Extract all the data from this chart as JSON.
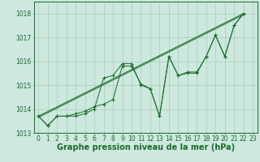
{
  "background_color": "#cce8df",
  "grid_color": "#aaccbb",
  "line_color": "#1a6b2a",
  "ylim": [
    1013.0,
    1018.5
  ],
  "xlim": [
    -0.5,
    23.5
  ],
  "yticks": [
    1013,
    1014,
    1015,
    1016,
    1017,
    1018
  ],
  "xticks": [
    0,
    1,
    2,
    3,
    4,
    5,
    6,
    7,
    8,
    9,
    10,
    11,
    12,
    13,
    14,
    15,
    16,
    17,
    18,
    19,
    20,
    21,
    22,
    23
  ],
  "line1_x": [
    0,
    1,
    2,
    3,
    4,
    5,
    6,
    7,
    8,
    9,
    10,
    11,
    12,
    13,
    14,
    15,
    16,
    17,
    18,
    19,
    20,
    21,
    22
  ],
  "line1_y": [
    1013.7,
    1013.3,
    1013.7,
    1013.7,
    1013.7,
    1013.8,
    1014.0,
    1015.3,
    1015.4,
    1015.9,
    1015.9,
    1015.0,
    1014.85,
    1013.7,
    1016.2,
    1015.4,
    1015.5,
    1015.5,
    1016.2,
    1017.1,
    1016.2,
    1017.5,
    1018.0
  ],
  "line2_x": [
    0,
    1,
    2,
    3,
    4,
    5,
    6,
    7,
    8,
    9,
    10,
    11,
    12,
    13,
    14,
    15,
    16,
    17,
    18,
    19,
    20,
    21,
    22
  ],
  "line2_y": [
    1013.7,
    1013.3,
    1013.7,
    1013.7,
    1013.8,
    1013.9,
    1014.1,
    1014.2,
    1014.4,
    1015.8,
    1015.8,
    1015.05,
    1014.85,
    1013.7,
    1016.2,
    1015.4,
    1015.55,
    1015.55,
    1016.2,
    1017.1,
    1016.2,
    1017.5,
    1018.0
  ],
  "trend1_x": [
    0,
    22
  ],
  "trend1_y": [
    1013.7,
    1018.0
  ],
  "trend2_x": [
    0,
    22
  ],
  "trend2_y": [
    1013.65,
    1017.95
  ],
  "xlabel": "Graphe pression niveau de la mer (hPa)",
  "xlabel_fontsize": 7,
  "tick_fontsize": 5.5
}
